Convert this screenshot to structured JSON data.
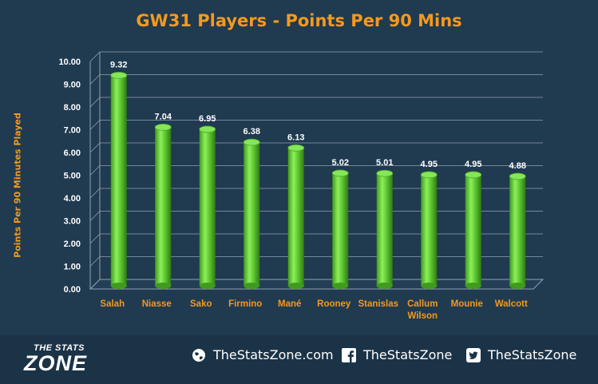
{
  "chart_data": {
    "type": "bar",
    "title": "GW31 Players - Points Per 90 Mins",
    "ylabel": "Points Per 90 Minutes Played",
    "categories": [
      "Salah",
      "Niasse",
      "Sako",
      "Firmino",
      "Mané",
      "Rooney",
      "Stanislas",
      "Callum Wilson",
      "Mounie",
      "Walcott"
    ],
    "values": [
      9.32,
      7.04,
      6.95,
      6.38,
      6.13,
      5.02,
      5.01,
      4.95,
      4.95,
      4.88
    ],
    "data_labels": [
      "9.32",
      "7.04",
      "6.95",
      "6.38",
      "6.13",
      "5.02",
      "5.01",
      "4.95",
      "4.95",
      "4.88"
    ],
    "yticks": [
      "0.00",
      "1.00",
      "2.00",
      "3.00",
      "4.00",
      "5.00",
      "6.00",
      "7.00",
      "8.00",
      "9.00",
      "10.00"
    ],
    "ylim": [
      0,
      10
    ],
    "grid": true,
    "legend": "none",
    "colors": {
      "bar": "#5ac22e",
      "bar_light": "#8df05a",
      "title": "#f39a1c",
      "background": "#203a50"
    }
  },
  "footer": {
    "logo_top": "THE STATS",
    "logo_bottom": "ZONE",
    "website": "TheStatsZone.com",
    "facebook": "TheStatsZone",
    "twitter": "TheStatsZone",
    "icons": [
      "globe-icon",
      "facebook-icon",
      "twitter-icon"
    ]
  }
}
